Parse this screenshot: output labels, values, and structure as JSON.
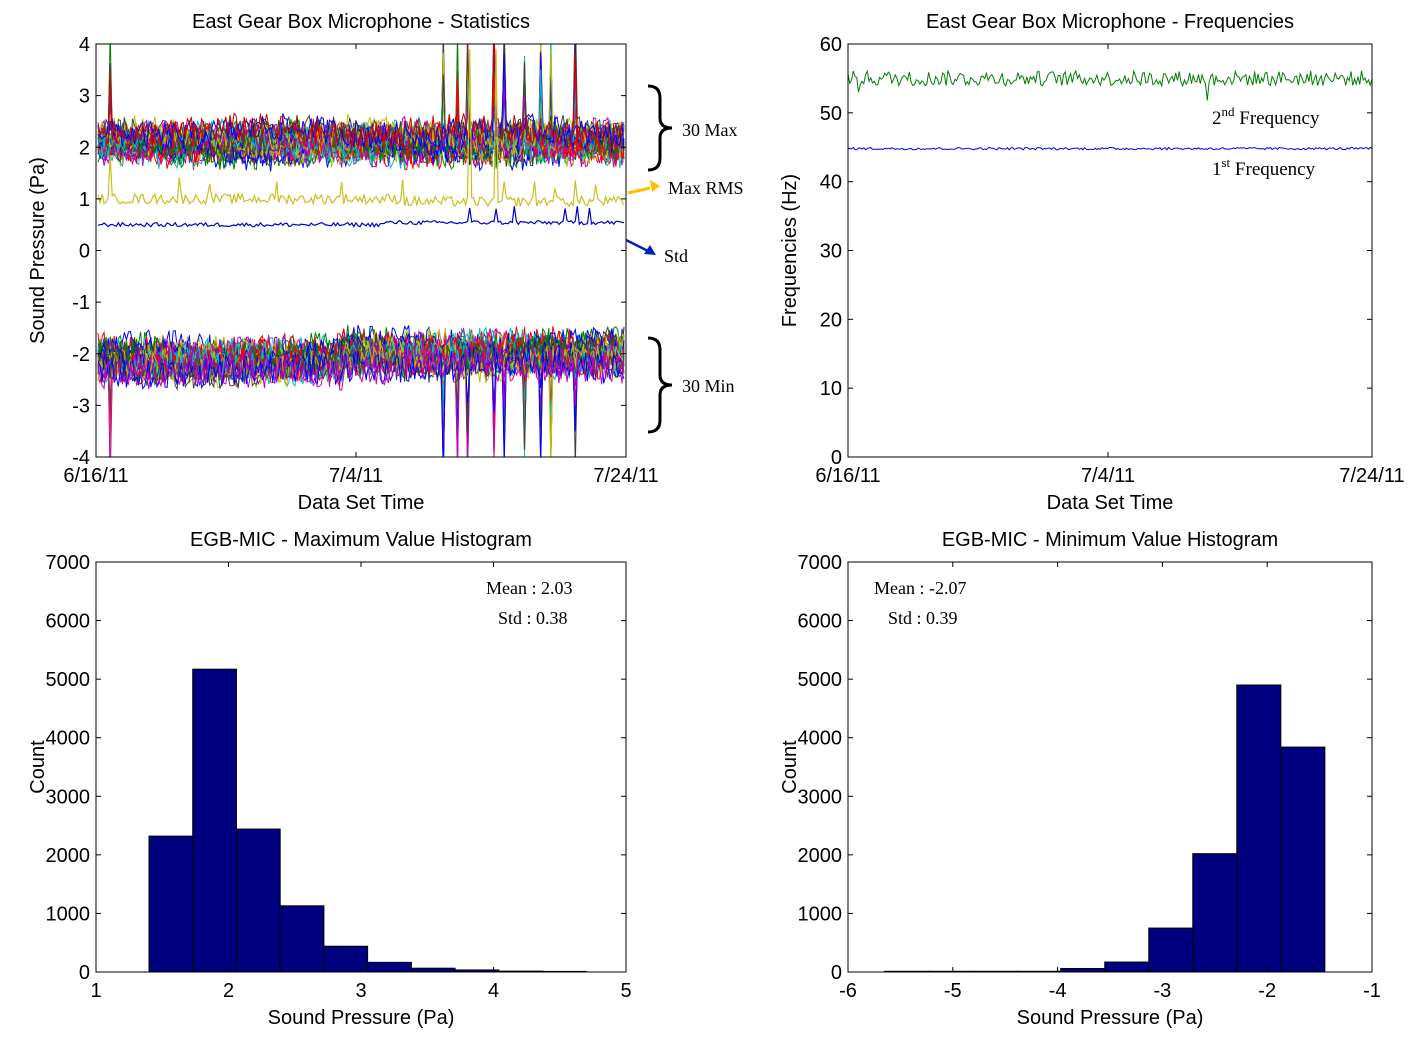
{
  "chart_data": [
    {
      "type": "line",
      "title": "East Gear Box Microphone - Statistics",
      "xlabel": "Data Set Time",
      "ylabel": "Sound Pressure (Pa)",
      "x_ticks": [
        "6/16/11",
        "7/4/11",
        "7/24/11"
      ],
      "x_range": [
        "6/16/11",
        "7/24/11"
      ],
      "ylim": [
        -4,
        4
      ],
      "y_ticks": [
        -4,
        -3,
        -2,
        -1,
        0,
        1,
        2,
        3,
        4
      ],
      "grid": false,
      "series": [
        {
          "name": "30 Max",
          "color": "#cc0000",
          "baseline": 2.03,
          "count": 30
        },
        {
          "name": "Max RMS",
          "color": "#c8c020",
          "baseline": 1.0
        },
        {
          "name": "Std",
          "color": "#0000cc",
          "baseline": 0.5
        },
        {
          "name": "30 Min",
          "color": "#bf00bf",
          "baseline": -2.07,
          "count": 30
        }
      ],
      "annotations": [
        {
          "text": "30 Max",
          "color": "#000000"
        },
        {
          "text": "Max RMS",
          "color": "#ffc000"
        },
        {
          "text": "Std",
          "color": "#0020c0"
        },
        {
          "text": "30 Min",
          "color": "#000000"
        }
      ]
    },
    {
      "type": "line",
      "title": "East Gear Box Microphone - Frequencies",
      "xlabel": "Data Set Time",
      "ylabel": "Frequencies (Hz)",
      "x_ticks": [
        "6/16/11",
        "7/4/11",
        "7/24/11"
      ],
      "x_range": [
        "6/16/11",
        "7/24/11"
      ],
      "ylim": [
        0,
        60
      ],
      "y_ticks": [
        0,
        10,
        20,
        30,
        40,
        50,
        60
      ],
      "grid": false,
      "series": [
        {
          "name": "2nd Frequency",
          "color": "#008000",
          "mean": 55
        },
        {
          "name": "1st Frequency",
          "color": "#0000ff",
          "mean": 44.8
        }
      ],
      "annotations": [
        {
          "base": "2",
          "sup": "nd",
          "rest": "Frequency"
        },
        {
          "base": "1",
          "sup": "st",
          "rest": "Frequency"
        }
      ]
    },
    {
      "type": "bar",
      "title": "EGB-MIC - Maximum Value Histogram",
      "xlabel": "Sound Pressure (Pa)",
      "ylabel": "Count",
      "xlim": [
        1,
        5
      ],
      "ylim": [
        0,
        7000
      ],
      "x_ticks": [
        1,
        2,
        3,
        4,
        5
      ],
      "y_ticks": [
        0,
        1000,
        2000,
        3000,
        4000,
        5000,
        6000,
        7000
      ],
      "bin_edges": [
        1.4,
        1.73,
        2.06,
        2.39,
        2.72,
        3.05,
        3.38,
        3.71,
        4.04,
        4.37,
        4.7
      ],
      "values": [
        2320,
        5170,
        2440,
        1130,
        440,
        165,
        65,
        35,
        15,
        10
      ],
      "bar_color": "#000080",
      "stats": {
        "mean_text": "Mean : 2.03",
        "std_text": "Std : 0.38"
      }
    },
    {
      "type": "bar",
      "title": "EGB-MIC - Minimum Value Histogram",
      "xlabel": "Sound Pressure (Pa)",
      "ylabel": "Count",
      "xlim": [
        -6,
        -1
      ],
      "ylim": [
        0,
        7000
      ],
      "x_ticks": [
        -6,
        -5,
        -4,
        -3,
        -2,
        -1
      ],
      "y_ticks": [
        0,
        1000,
        2000,
        3000,
        4000,
        5000,
        6000,
        7000
      ],
      "bin_edges": [
        -5.65,
        -5.23,
        -4.81,
        -4.39,
        -3.97,
        -3.55,
        -3.13,
        -2.71,
        -2.29,
        -1.87,
        -1.45
      ],
      "values": [
        12,
        12,
        12,
        12,
        60,
        170,
        750,
        2020,
        4900,
        3840
      ],
      "bar_color": "#000080",
      "stats": {
        "mean_text": "Mean : -2.07",
        "std_text": "Std : 0.39"
      }
    }
  ]
}
